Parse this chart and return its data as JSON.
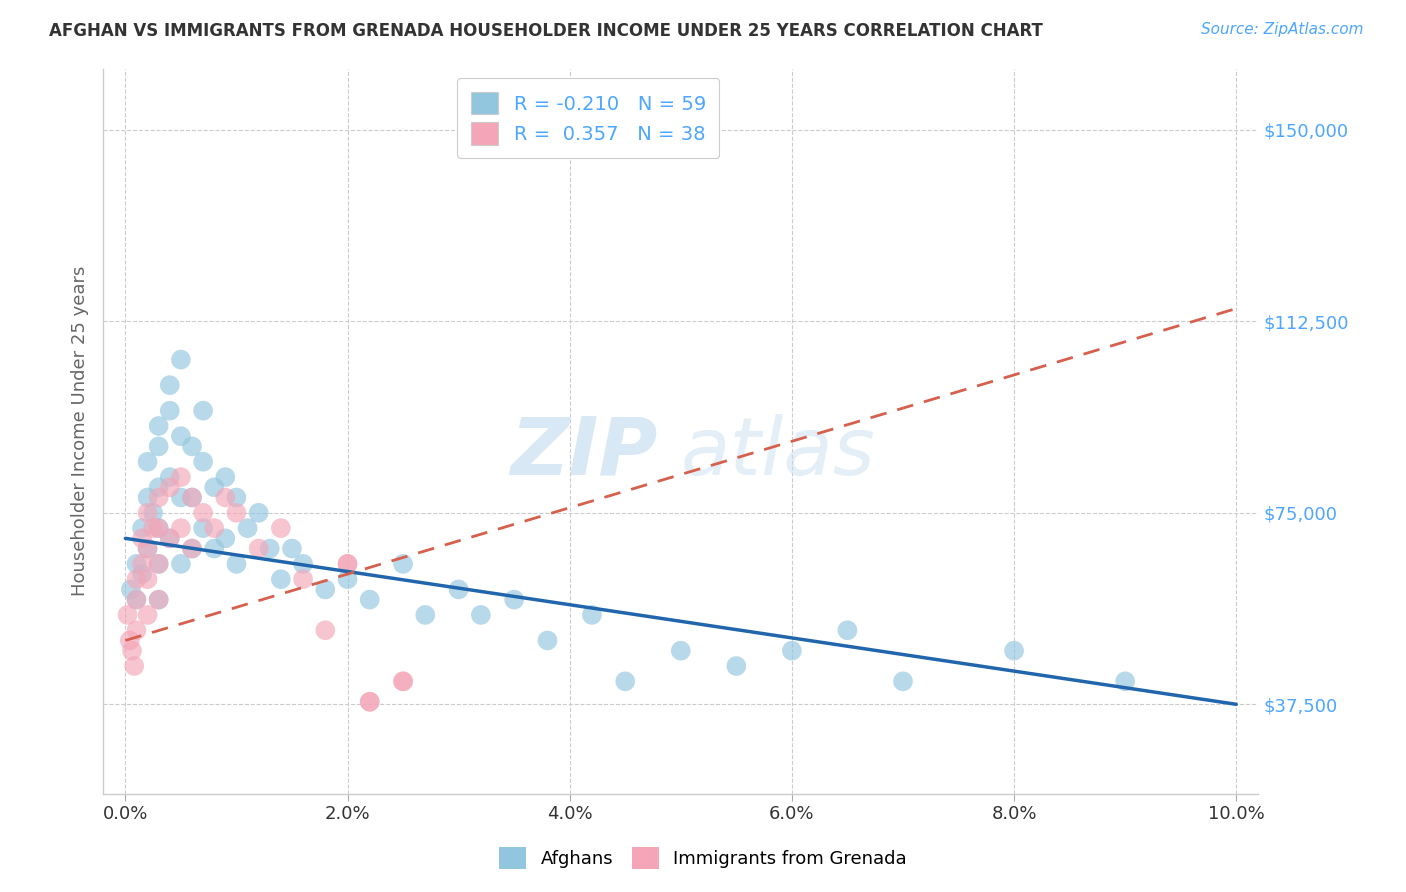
{
  "title": "AFGHAN VS IMMIGRANTS FROM GRENADA HOUSEHOLDER INCOME UNDER 25 YEARS CORRELATION CHART",
  "source": "Source: ZipAtlas.com",
  "ylabel_text": "Householder Income Under 25 years",
  "legend_label1": "Afghans",
  "legend_label2": "Immigrants from Grenada",
  "r1": -0.21,
  "n1": 59,
  "r2": 0.357,
  "n2": 38,
  "yticks": [
    37500,
    75000,
    112500,
    150000
  ],
  "xticks": [
    0.0,
    0.02,
    0.04,
    0.06,
    0.08,
    0.1
  ],
  "color_blue": "#92c5de",
  "color_pink": "#f4a6b8",
  "line_color_blue": "#2166ac",
  "line_color_pink": "#d6604d",
  "watermark_zip": "ZIP",
  "watermark_atlas": "atlas",
  "blue_x": [
    0.0005,
    0.001,
    0.001,
    0.0015,
    0.0015,
    0.002,
    0.002,
    0.002,
    0.0025,
    0.003,
    0.003,
    0.003,
    0.003,
    0.003,
    0.003,
    0.004,
    0.004,
    0.004,
    0.004,
    0.005,
    0.005,
    0.005,
    0.005,
    0.006,
    0.006,
    0.006,
    0.007,
    0.007,
    0.007,
    0.008,
    0.008,
    0.009,
    0.009,
    0.01,
    0.01,
    0.011,
    0.012,
    0.013,
    0.014,
    0.015,
    0.016,
    0.018,
    0.02,
    0.022,
    0.025,
    0.027,
    0.03,
    0.032,
    0.035,
    0.038,
    0.042,
    0.045,
    0.05,
    0.055,
    0.06,
    0.065,
    0.07,
    0.08,
    0.09
  ],
  "blue_y": [
    60000,
    65000,
    58000,
    72000,
    63000,
    85000,
    78000,
    68000,
    75000,
    92000,
    88000,
    80000,
    72000,
    65000,
    58000,
    100000,
    95000,
    82000,
    70000,
    105000,
    90000,
    78000,
    65000,
    88000,
    78000,
    68000,
    95000,
    85000,
    72000,
    80000,
    68000,
    82000,
    70000,
    78000,
    65000,
    72000,
    75000,
    68000,
    62000,
    68000,
    65000,
    60000,
    62000,
    58000,
    65000,
    55000,
    60000,
    55000,
    58000,
    50000,
    55000,
    42000,
    48000,
    45000,
    48000,
    52000,
    42000,
    48000,
    42000
  ],
  "pink_x": [
    0.0002,
    0.0004,
    0.0006,
    0.0008,
    0.001,
    0.001,
    0.001,
    0.0015,
    0.0015,
    0.002,
    0.002,
    0.002,
    0.002,
    0.0025,
    0.003,
    0.003,
    0.003,
    0.003,
    0.004,
    0.004,
    0.005,
    0.005,
    0.006,
    0.006,
    0.007,
    0.008,
    0.009,
    0.01,
    0.012,
    0.014,
    0.016,
    0.018,
    0.02,
    0.022,
    0.025,
    0.02,
    0.022,
    0.025
  ],
  "pink_y": [
    55000,
    50000,
    48000,
    45000,
    62000,
    58000,
    52000,
    70000,
    65000,
    75000,
    68000,
    62000,
    55000,
    72000,
    78000,
    72000,
    65000,
    58000,
    80000,
    70000,
    82000,
    72000,
    78000,
    68000,
    75000,
    72000,
    78000,
    75000,
    68000,
    72000,
    62000,
    52000,
    65000,
    38000,
    42000,
    65000,
    38000,
    42000
  ],
  "blue_line_x0": 0.0,
  "blue_line_y0": 70000,
  "blue_line_x1": 0.1,
  "blue_line_y1": 37500,
  "pink_line_x0": 0.0,
  "pink_line_y0": 50000,
  "pink_line_x1": 0.1,
  "pink_line_y1": 115000
}
